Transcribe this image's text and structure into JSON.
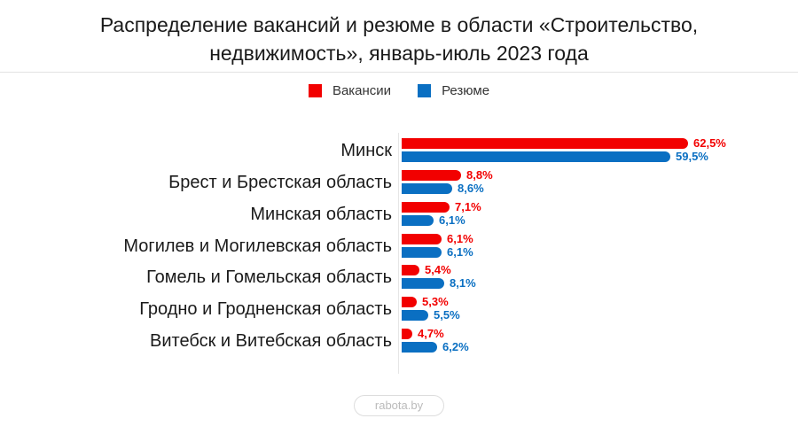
{
  "title_line1": "Распределение вакансий и резюме в области «Строительство,",
  "title_line2": "недвижимость», январь-июль 2023 года",
  "legend": [
    {
      "label": "Вакансии",
      "color": "#f20000"
    },
    {
      "label": "Резюме",
      "color": "#0a6fc2"
    }
  ],
  "footer": "rabota.by",
  "chart_data": {
    "type": "bar",
    "orientation": "horizontal",
    "title": "Распределение вакансий и резюме в области «Строительство, недвижимость», январь-июль 2023 года",
    "categories": [
      "Минск",
      "Брест и Брестская область",
      "Минская область",
      "Могилев и Могилевская область",
      "Гомель и Гомельская область",
      "Гродно и Гродненская область",
      "Витебск и Витебская область"
    ],
    "series": [
      {
        "name": "Вакансии",
        "color": "#f20000",
        "values": [
          62.5,
          8.8,
          7.1,
          6.1,
          5.4,
          5.3,
          4.7
        ],
        "labels": [
          "62,5%",
          "8,8%",
          "7,1%",
          "6,1%",
          "5,4%",
          "5,3%",
          "4,7%"
        ]
      },
      {
        "name": "Резюме",
        "color": "#0a6fc2",
        "values": [
          59.5,
          8.6,
          6.1,
          6.1,
          8.1,
          5.5,
          6.2
        ],
        "labels": [
          "59,5%",
          "8,6%",
          "6,1%",
          "6,1%",
          "8,1%",
          "5,5%",
          "6,2%"
        ]
      }
    ],
    "unit": "%",
    "xlabel": "",
    "ylabel": "",
    "grid": false,
    "legend_position": "top"
  }
}
